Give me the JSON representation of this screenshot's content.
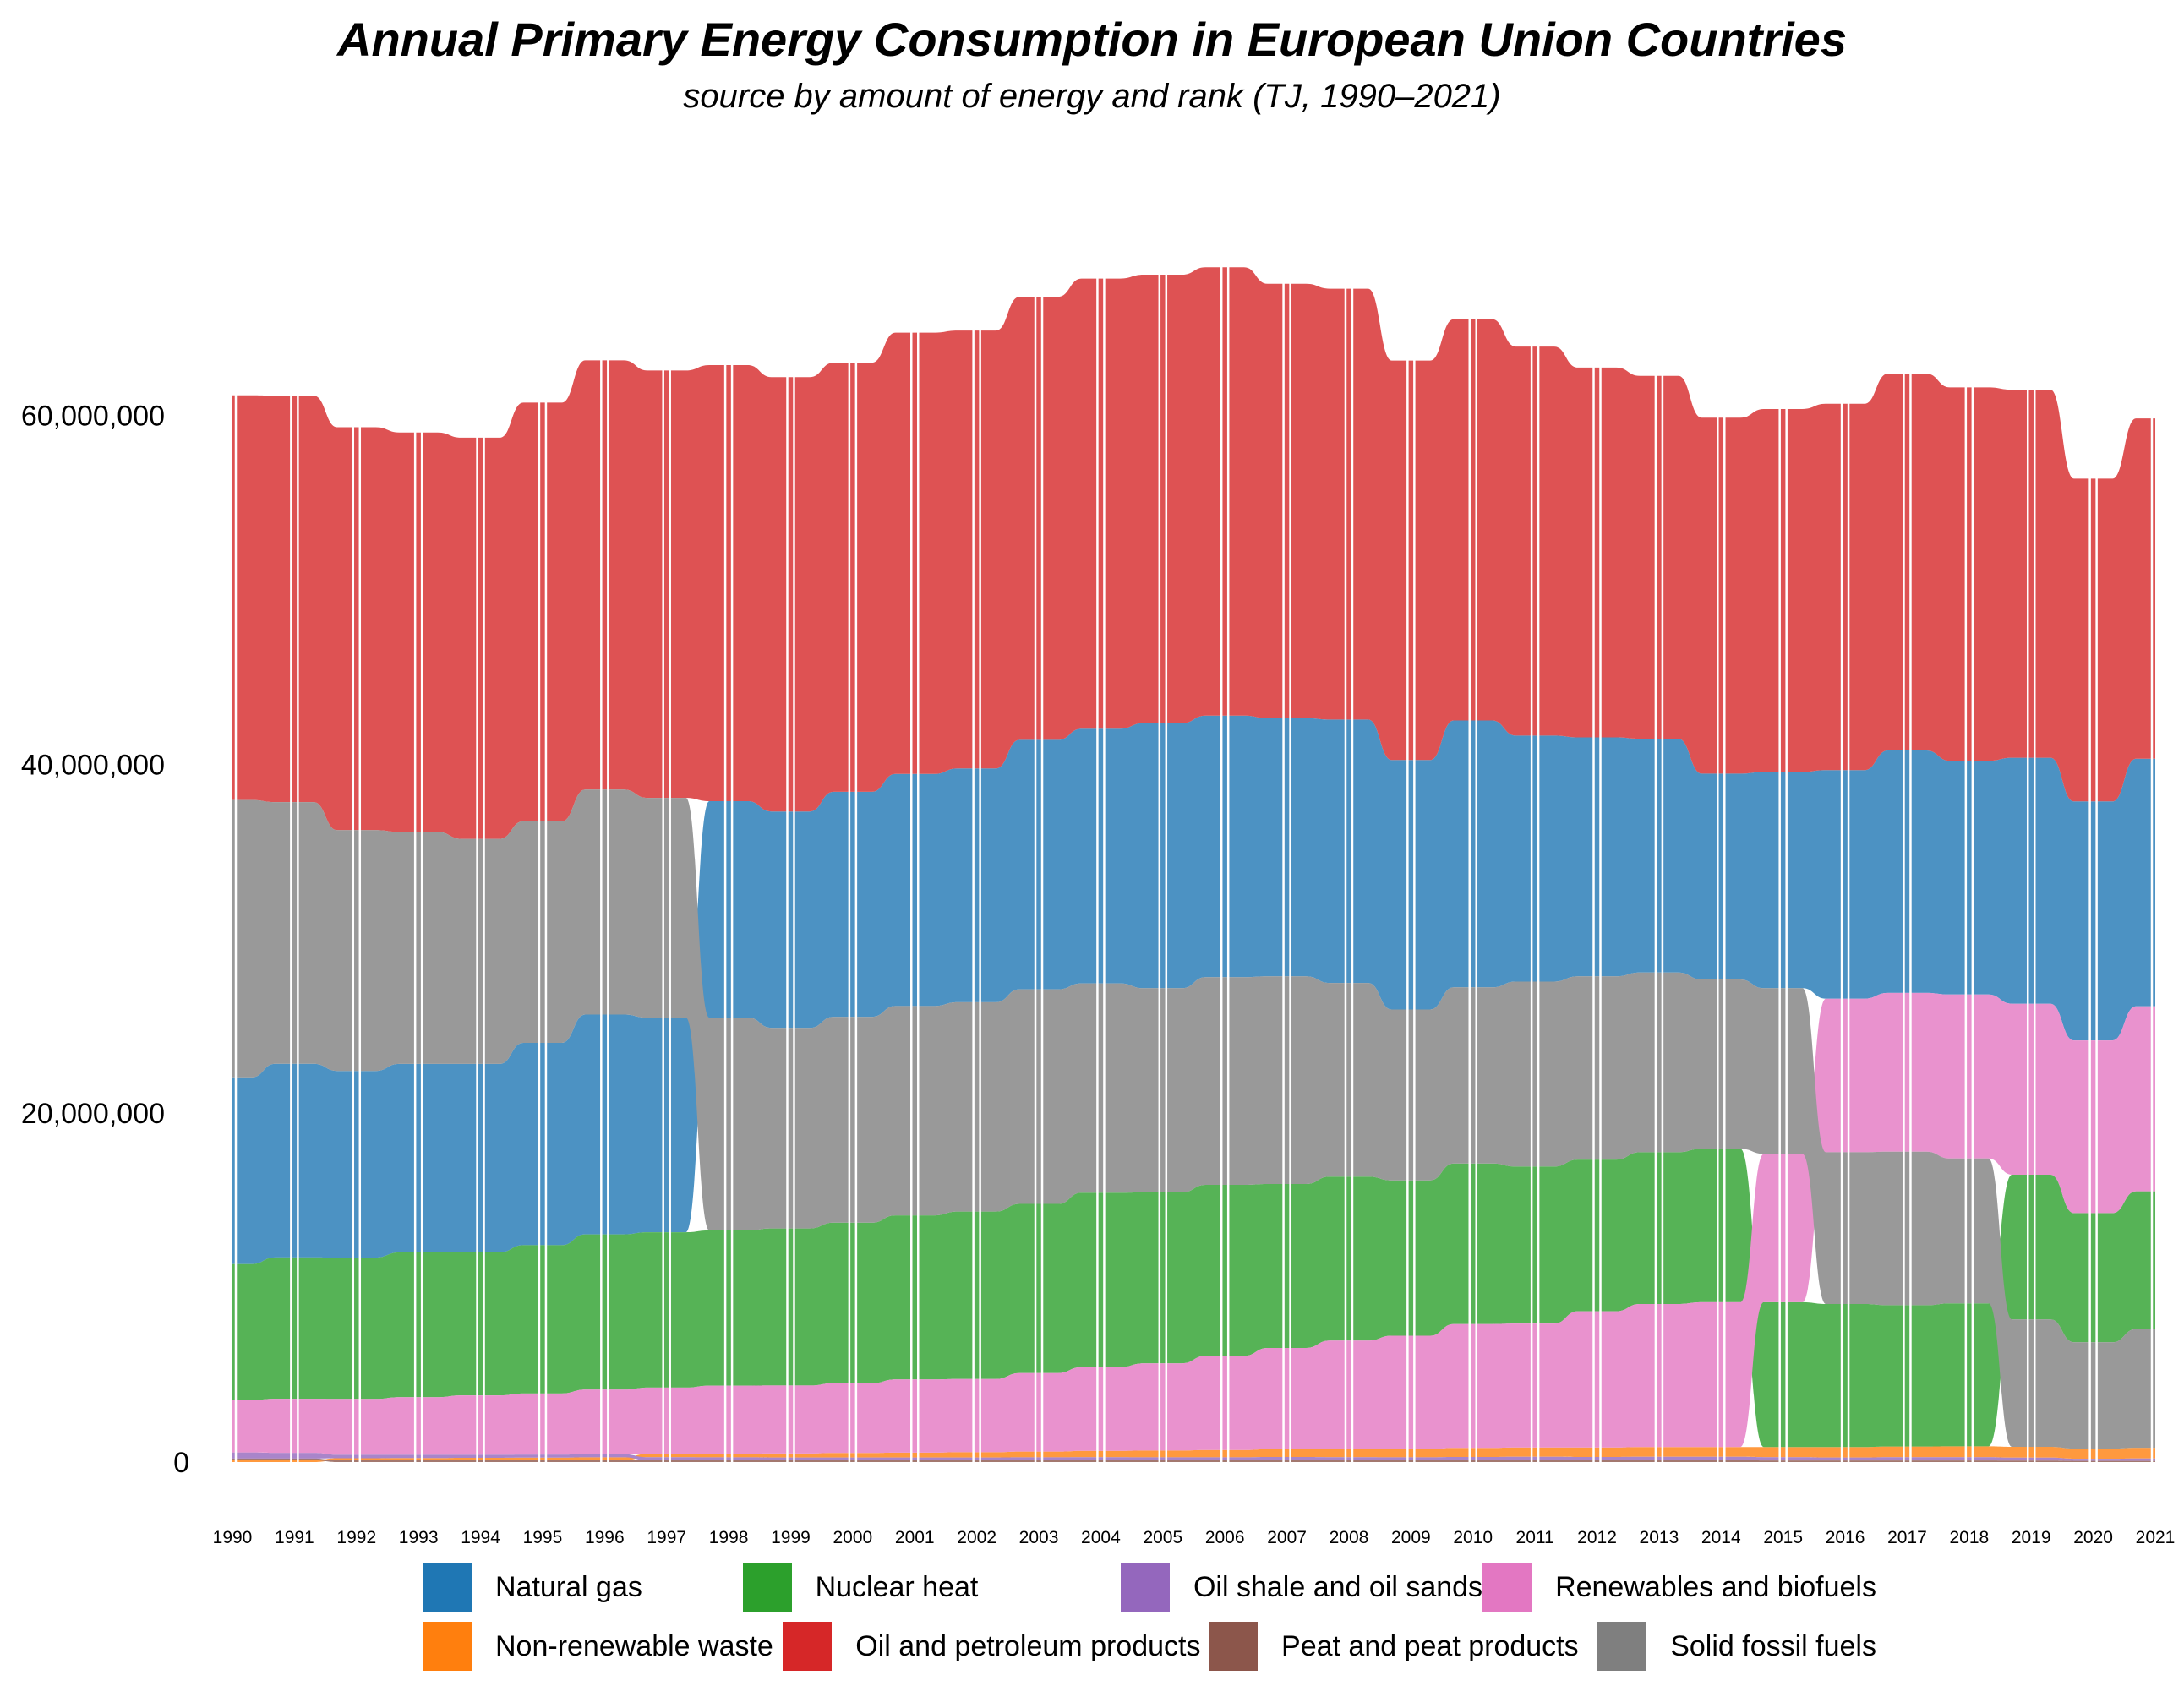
{
  "chart_data": {
    "type": "area",
    "subtype": "ranked-bump-area",
    "title": "Annual Primary Energy Consumption in European Union Countries",
    "subtitle": "source by amount of energy and rank (TJ, 1990–2021)",
    "xlabel": "",
    "ylabel": "",
    "ylim": [
      0,
      70000000
    ],
    "yticks": [
      0,
      20000000,
      40000000,
      60000000
    ],
    "ytick_labels": [
      "0",
      "20,000,000",
      "40,000,000",
      "60,000,000"
    ],
    "x": [
      1990,
      1991,
      1992,
      1993,
      1994,
      1995,
      1996,
      1997,
      1998,
      1999,
      2000,
      2001,
      2002,
      2003,
      2004,
      2005,
      2006,
      2007,
      2008,
      2009,
      2010,
      2011,
      2012,
      2013,
      2014,
      2015,
      2016,
      2017,
      2018,
      2019,
      2020,
      2021
    ],
    "grid": false,
    "legend_position": "bottom",
    "series": [
      {
        "name": "Natural gas",
        "color": "#1f77b4",
        "values": [
          10700000,
          11100000,
          10700000,
          10800000,
          10800000,
          11600000,
          12600000,
          12300000,
          12400000,
          12400000,
          12900000,
          13300000,
          13400000,
          14300000,
          14600000,
          15200000,
          15000000,
          14800000,
          15100000,
          14300000,
          15300000,
          14100000,
          13700000,
          13400000,
          11800000,
          12400000,
          13100000,
          13900000,
          13400000,
          14100000,
          13700000,
          14200000
        ]
      },
      {
        "name": "Non-renewable waste",
        "color": "#ff7f0e",
        "values": [
          100000,
          100000,
          120000,
          130000,
          140000,
          150000,
          170000,
          190000,
          210000,
          230000,
          260000,
          280000,
          300000,
          330000,
          360000,
          390000,
          420000,
          450000,
          480000,
          470000,
          520000,
          540000,
          550000,
          560000,
          560000,
          580000,
          600000,
          610000,
          620000,
          620000,
          580000,
          610000
        ]
      },
      {
        "name": "Nuclear heat",
        "color": "#2ca02c",
        "values": [
          7800000,
          8100000,
          8100000,
          8300000,
          8200000,
          8500000,
          8900000,
          8900000,
          8900000,
          9000000,
          9200000,
          9400000,
          9600000,
          9700000,
          10000000,
          9800000,
          9800000,
          9400000,
          9400000,
          8900000,
          9200000,
          9000000,
          8700000,
          8700000,
          8800000,
          8300000,
          8200000,
          8100000,
          8200000,
          8300000,
          7400000,
          7900000
        ]
      },
      {
        "name": "Oil and petroleum products",
        "color": "#d62728",
        "values": [
          23200000,
          23300000,
          23100000,
          22900000,
          23000000,
          24000000,
          24600000,
          24500000,
          25000000,
          24900000,
          24600000,
          25300000,
          25100000,
          25400000,
          25800000,
          25700000,
          25700000,
          24900000,
          24700000,
          22900000,
          23000000,
          22300000,
          21200000,
          20800000,
          20400000,
          20800000,
          21000000,
          21600000,
          21400000,
          21100000,
          18500000,
          19500000
        ]
      },
      {
        "name": "Oil shale and oil sands",
        "color": "#9467bd",
        "values": [
          350000,
          330000,
          200000,
          190000,
          180000,
          180000,
          180000,
          180000,
          170000,
          160000,
          160000,
          160000,
          160000,
          170000,
          180000,
          170000,
          170000,
          190000,
          180000,
          170000,
          190000,
          200000,
          190000,
          200000,
          200000,
          190000,
          170000,
          190000,
          190000,
          170000,
          120000,
          140000
        ]
      },
      {
        "name": "Peat and peat products",
        "color": "#8c564b",
        "values": [
          100000,
          100000,
          100000,
          100000,
          100000,
          100000,
          100000,
          100000,
          100000,
          100000,
          100000,
          100000,
          100000,
          100000,
          100000,
          100000,
          100000,
          100000,
          100000,
          100000,
          100000,
          100000,
          100000,
          100000,
          100000,
          90000,
          90000,
          90000,
          90000,
          80000,
          70000,
          70000
        ]
      },
      {
        "name": "Renewables and biofuels",
        "color": "#e377c2",
        "values": [
          3000000,
          3100000,
          3200000,
          3300000,
          3400000,
          3500000,
          3700000,
          3800000,
          3900000,
          3900000,
          4000000,
          4200000,
          4200000,
          4500000,
          4800000,
          5000000,
          5400000,
          5800000,
          6200000,
          6500000,
          7100000,
          7100000,
          7800000,
          8200000,
          8300000,
          8500000,
          8800000,
          9100000,
          9400000,
          9800000,
          9900000,
          10600000
        ]
      },
      {
        "name": "Solid fossil fuels",
        "color": "#7f7f7f",
        "values": [
          15900000,
          15000000,
          13800000,
          13300000,
          12900000,
          12700000,
          12900000,
          12600000,
          12200000,
          11500000,
          11800000,
          12000000,
          12000000,
          12300000,
          12000000,
          11700000,
          11900000,
          11900000,
          11100000,
          9800000,
          10100000,
          10600000,
          10500000,
          10300000,
          9700000,
          9500000,
          8700000,
          8800000,
          8300000,
          7300000,
          6100000,
          6800000
        ]
      }
    ]
  },
  "legend": {
    "items": [
      {
        "label": "Natural gas",
        "color": "#1f77b4"
      },
      {
        "label": "Nuclear heat",
        "color": "#2ca02c"
      },
      {
        "label": "Oil shale and oil sands",
        "color": "#9467bd"
      },
      {
        "label": "Renewables and biofuels",
        "color": "#e377c2"
      },
      {
        "label": "Non-renewable waste",
        "color": "#ff7f0e"
      },
      {
        "label": "Oil and petroleum products",
        "color": "#d62728"
      },
      {
        "label": "Peat and peat products",
        "color": "#8c564b"
      },
      {
        "label": "Solid fossil fuels",
        "color": "#7f7f7f"
      }
    ]
  }
}
